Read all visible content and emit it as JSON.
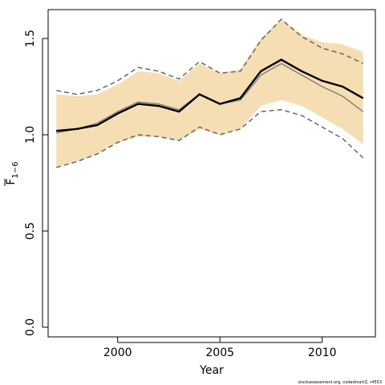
{
  "chart_data": {
    "type": "line",
    "title": "",
    "xlabel": "Year",
    "ylabel": "F",
    "ylabel_subscript": "1−6",
    "xlim": [
      1996.6,
      2012.6
    ],
    "ylim": [
      -0.05,
      1.65
    ],
    "x_ticks": [
      2000,
      2005,
      2010
    ],
    "x_tick_labels": [
      "2000",
      "2005",
      "2010"
    ],
    "y_ticks": [
      0.0,
      0.5,
      1.0,
      1.5
    ],
    "y_tick_labels": [
      "0.0",
      "0.5",
      "1.0",
      "1.5"
    ],
    "grid": false,
    "legend": "none",
    "x": [
      1997,
      1998,
      1999,
      2000,
      2001,
      2002,
      2003,
      2004,
      2005,
      2006,
      2007,
      2008,
      2009,
      2010,
      2011,
      2012
    ],
    "band": {
      "name": "confidence-band",
      "color": "#f5deb3",
      "lower": [
        0.83,
        0.86,
        0.9,
        0.96,
        0.99,
        0.99,
        0.97,
        1.03,
        1.0,
        1.03,
        1.15,
        1.18,
        1.15,
        1.09,
        1.03,
        0.95
      ],
      "upper": [
        1.21,
        1.2,
        1.21,
        1.26,
        1.33,
        1.32,
        1.28,
        1.37,
        1.32,
        1.34,
        1.5,
        1.6,
        1.52,
        1.48,
        1.47,
        1.43
      ]
    },
    "series": [
      {
        "name": "estimate",
        "color": "#000000",
        "style": "solid-thick",
        "values": [
          1.02,
          1.03,
          1.05,
          1.11,
          1.16,
          1.15,
          1.12,
          1.21,
          1.16,
          1.19,
          1.33,
          1.39,
          1.33,
          1.28,
          1.25,
          1.19
        ]
      },
      {
        "name": "estimate-alt",
        "color": "#808080",
        "style": "solid-thin",
        "values": [
          1.01,
          1.03,
          1.06,
          1.12,
          1.17,
          1.16,
          1.13,
          1.21,
          1.16,
          1.18,
          1.31,
          1.37,
          1.31,
          1.25,
          1.2,
          1.12
        ]
      },
      {
        "name": "upper-dashed",
        "color": "#666666",
        "style": "dashed",
        "values": [
          1.23,
          1.21,
          1.23,
          1.28,
          1.35,
          1.33,
          1.29,
          1.38,
          1.32,
          1.33,
          1.49,
          1.6,
          1.51,
          1.45,
          1.42,
          1.37
        ]
      },
      {
        "name": "lower-dashed",
        "color": "#666666",
        "style": "dashed",
        "values": [
          0.83,
          0.86,
          0.9,
          0.96,
          1.0,
          0.99,
          0.97,
          1.04,
          1.0,
          1.03,
          1.12,
          1.13,
          1.1,
          1.04,
          0.98,
          0.88
        ]
      }
    ]
  },
  "footer": {
    "credit": "stockassessment.org, codadmatrZ, r4553"
  }
}
